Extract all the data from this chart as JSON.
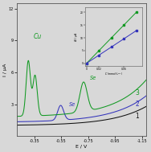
{
  "xlim": [
    -0.22,
    -1.18
  ],
  "ylim": [
    0,
    12.5
  ],
  "xlabel": "E / V",
  "ylabel": "I / μA",
  "xticks": [
    -0.35,
    -0.55,
    -0.75,
    -0.95,
    -1.15
  ],
  "yticks": [
    3.0,
    6.0,
    9.0,
    12.0
  ],
  "bg_color": "#d8d8d8",
  "curve1_color": "#111111",
  "curve2_color": "#3333bb",
  "curve3_color": "#119922",
  "inset_bg": "#d8d8d8",
  "inset_line1_color": "#119922",
  "inset_line2_color": "#3333bb"
}
